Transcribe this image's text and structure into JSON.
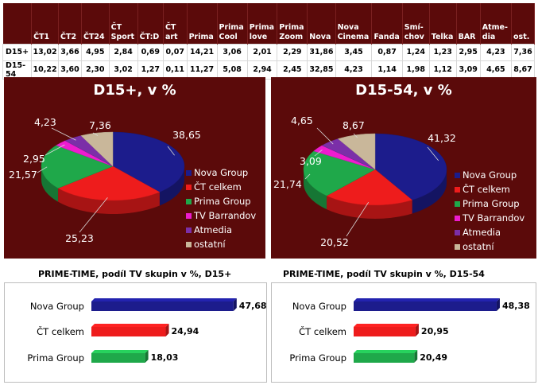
{
  "table": {
    "headers": [
      "",
      "ČT1",
      "ČT2",
      "ČT24",
      "ČT Sport",
      "ČT:D",
      "ČT art",
      "Prima",
      "Prima Cool",
      "Prima love",
      "Prima Zoom",
      "Nova",
      "Nova Cinema",
      "Fanda",
      "Smí-chov",
      "Telka",
      "BAR",
      "Atme-dia",
      "ost."
    ],
    "rows": [
      {
        "label": "D15+",
        "values": [
          "13,02",
          "3,66",
          "4,95",
          "2,84",
          "0,69",
          "0,07",
          "14,21",
          "3,06",
          "2,01",
          "2,29",
          "31,86",
          "3,45",
          "0,87",
          "1,24",
          "1,23",
          "2,95",
          "4,23",
          "7,36"
        ]
      },
      {
        "label": "D15-54",
        "values": [
          "10,22",
          "3,60",
          "2,30",
          "3,02",
          "1,27",
          "0,11",
          "11,27",
          "5,08",
          "2,94",
          "2,45",
          "32,85",
          "4,23",
          "1,14",
          "1,98",
          "1,12",
          "3,09",
          "4,65",
          "8,67"
        ]
      }
    ]
  },
  "chart_data": [
    {
      "type": "pie",
      "title": "D15+, v %",
      "labels": [
        "Nova Group",
        "ČT celkem",
        "Prima Group",
        "TV Barrandov",
        "Atmedia",
        "ostatní"
      ],
      "values": [
        38.65,
        25.23,
        21.57,
        2.95,
        4.23,
        7.36
      ],
      "display": [
        "38,65",
        "25,23",
        "21,57",
        "2,95",
        "4,23",
        "7,36"
      ],
      "colors": [
        "#1c1c8c",
        "#ee1c1c",
        "#1fa84a",
        "#ee1ccf",
        "#7b2fa8",
        "#c9b79a"
      ],
      "legend_position": "right"
    },
    {
      "type": "pie",
      "title": "D15-54, v %",
      "labels": [
        "Nova Group",
        "ČT celkem",
        "Prima Group",
        "TV Barrandov",
        "Atmedia",
        "ostatní"
      ],
      "values": [
        41.32,
        20.52,
        21.74,
        3.09,
        4.65,
        8.67
      ],
      "display": [
        "41,32",
        "20,52",
        "21,74",
        "3,09",
        "4,65",
        "8,67"
      ],
      "colors": [
        "#1c1c8c",
        "#ee1c1c",
        "#1fa84a",
        "#ee1ccf",
        "#7b2fa8",
        "#c9b79a"
      ],
      "legend_position": "right"
    },
    {
      "type": "bar",
      "orientation": "horizontal",
      "title": "PRIME-TIME, podíl TV skupin v %, D15+",
      "categories": [
        "Nova Group",
        "ČT celkem",
        "Prima Group"
      ],
      "values": [
        47.68,
        24.94,
        18.03
      ],
      "display": [
        "47,68",
        "24,94",
        "18,03"
      ],
      "colors": [
        "#1c1c8c",
        "#ee1c1c",
        "#1fa84a"
      ]
    },
    {
      "type": "bar",
      "orientation": "horizontal",
      "title": "PRIME-TIME, podíl TV skupin v %, D15-54",
      "categories": [
        "Nova Group",
        "ČT celkem",
        "Prima Group"
      ],
      "values": [
        48.38,
        20.95,
        20.49
      ],
      "display": [
        "48,38",
        "20,95",
        "20,49"
      ],
      "colors": [
        "#1c1c8c",
        "#ee1c1c",
        "#1fa84a"
      ]
    }
  ]
}
